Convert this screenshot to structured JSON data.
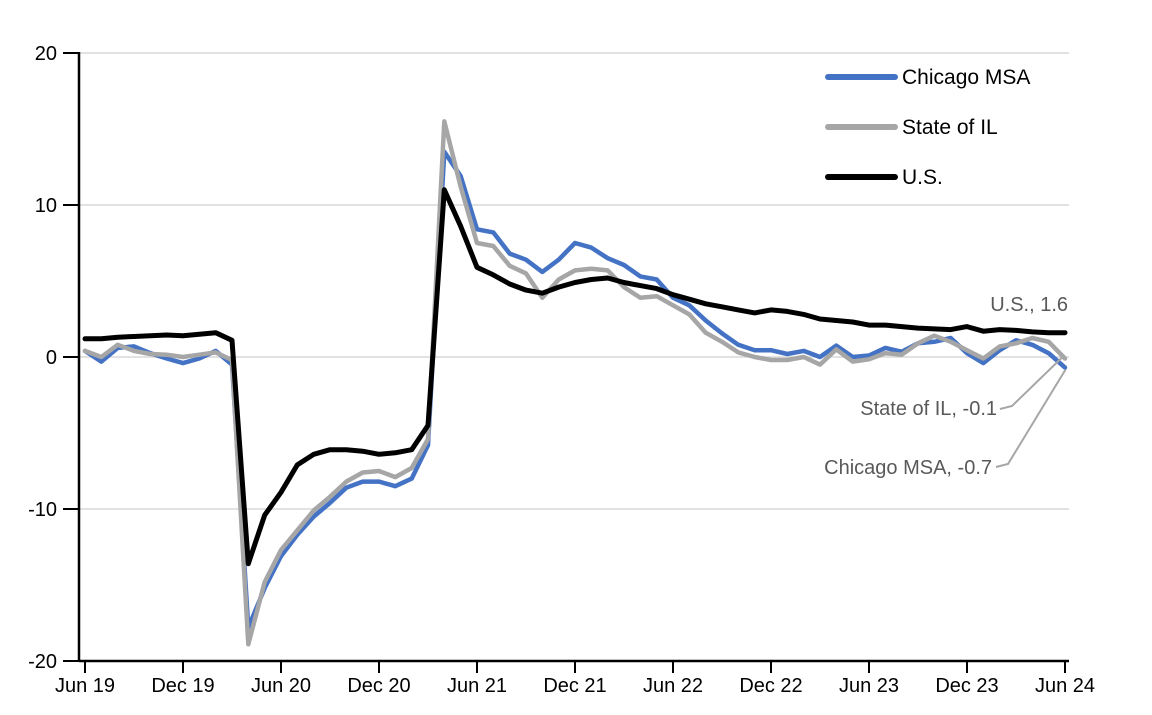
{
  "page": {
    "background": "#FFFFFF"
  },
  "chart_data": {
    "type": "line",
    "title": "",
    "xlabel": "",
    "ylabel": "",
    "x_unit": "month",
    "x_range": [
      "Jun 2019",
      "Jun 2024"
    ],
    "x_count": 61,
    "ylim": [
      -20,
      20
    ],
    "grid": "horizontal",
    "gridlines": [
      20,
      10,
      0,
      -10
    ],
    "y_ticks": [
      {
        "label": "20",
        "value": 20
      },
      {
        "label": "10",
        "value": 10
      },
      {
        "label": "0",
        "value": 0
      },
      {
        "label": "-10",
        "value": -10
      },
      {
        "label": "-20",
        "value": -20
      }
    ],
    "x_ticks": [
      {
        "label": "Jun 19",
        "index": 0
      },
      {
        "label": "Dec 19",
        "index": 6
      },
      {
        "label": "Jun 20",
        "index": 12
      },
      {
        "label": "Dec 20",
        "index": 18
      },
      {
        "label": "Jun 21",
        "index": 24
      },
      {
        "label": "Dec 21",
        "index": 30
      },
      {
        "label": "Jun 22",
        "index": 36
      },
      {
        "label": "Dec 22",
        "index": 42
      },
      {
        "label": "Jun 23",
        "index": 48
      },
      {
        "label": "Dec 23",
        "index": 54
      },
      {
        "label": "Jun 24",
        "index": 60
      }
    ],
    "colors": {
      "chicago_msa": "#4472C4",
      "state_of_il": "#A6A6A6",
      "us": "#000000",
      "gridline": "#D9D9D9",
      "axis": "#000000",
      "annotation_text": "#595959",
      "leader_line": "#A6A6A6"
    },
    "series": [
      {
        "id": "chicago-msa",
        "name": "Chicago MSA",
        "color": "#4472C4",
        "width": 4.5,
        "values": [
          0.4,
          -0.3,
          0.6,
          0.7,
          0.25,
          -0.1,
          -0.4,
          -0.1,
          0.4,
          -0.5,
          -17.8,
          -15.2,
          -13.1,
          -11.7,
          -10.5,
          -9.6,
          -8.6,
          -8.2,
          -8.2,
          -8.5,
          -8.0,
          -5.8,
          13.5,
          11.9,
          8.4,
          8.2,
          6.8,
          6.4,
          5.6,
          6.4,
          7.5,
          7.2,
          6.5,
          6.05,
          5.3,
          5.1,
          3.9,
          3.4,
          2.4,
          1.55,
          0.8,
          0.45,
          0.45,
          0.2,
          0.4,
          0.0,
          0.75,
          0.0,
          0.1,
          0.6,
          0.35,
          0.9,
          1.0,
          1.25,
          0.25,
          -0.4,
          0.45,
          1.1,
          0.8,
          0.25,
          -0.7
        ]
      },
      {
        "id": "state-of-il",
        "name": "State of IL",
        "color": "#A6A6A6",
        "width": 4.5,
        "values": [
          0.4,
          0.0,
          0.8,
          0.4,
          0.2,
          0.15,
          0.0,
          0.15,
          0.3,
          -0.2,
          -18.9,
          -14.8,
          -12.7,
          -11.4,
          -10.1,
          -9.2,
          -8.2,
          -7.6,
          -7.5,
          -7.9,
          -7.3,
          -5.4,
          15.5,
          11.2,
          7.5,
          7.3,
          6.0,
          5.5,
          3.9,
          5.1,
          5.7,
          5.8,
          5.7,
          4.6,
          3.9,
          4.0,
          3.4,
          2.8,
          1.6,
          1.0,
          0.3,
          0.0,
          -0.2,
          -0.2,
          0.0,
          -0.5,
          0.5,
          -0.3,
          -0.15,
          0.25,
          0.15,
          0.9,
          1.4,
          1.0,
          0.45,
          -0.1,
          0.7,
          0.9,
          1.25,
          1.0,
          -0.1
        ]
      },
      {
        "id": "us",
        "name": "U.S.",
        "color": "#000000",
        "width": 5,
        "values": [
          1.2,
          1.2,
          1.3,
          1.35,
          1.4,
          1.45,
          1.4,
          1.5,
          1.6,
          1.1,
          -13.6,
          -10.4,
          -8.9,
          -7.1,
          -6.4,
          -6.1,
          -6.1,
          -6.2,
          -6.4,
          -6.3,
          -6.1,
          -4.5,
          11.0,
          8.6,
          5.9,
          5.4,
          4.8,
          4.4,
          4.2,
          4.6,
          4.9,
          5.1,
          5.2,
          4.9,
          4.7,
          4.5,
          4.1,
          3.8,
          3.5,
          3.3,
          3.1,
          2.9,
          3.1,
          3.0,
          2.8,
          2.5,
          2.4,
          2.3,
          2.1,
          2.1,
          2.0,
          1.9,
          1.85,
          1.8,
          2.0,
          1.7,
          1.8,
          1.75,
          1.65,
          1.6,
          1.6
        ]
      }
    ],
    "legend": {
      "position": "top-right",
      "items": [
        "Chicago MSA",
        "State of IL",
        "U.S."
      ]
    },
    "annotations": [
      {
        "id": "us",
        "label": "U.S., 1.6",
        "series": "us",
        "value": 1.6
      },
      {
        "id": "state-of-il",
        "label": "State of IL, -0.1",
        "series": "state-of-il",
        "value": -0.1
      },
      {
        "id": "chicago-msa",
        "label": "Chicago MSA, -0.7",
        "series": "chicago-msa",
        "value": -0.7
      }
    ]
  }
}
